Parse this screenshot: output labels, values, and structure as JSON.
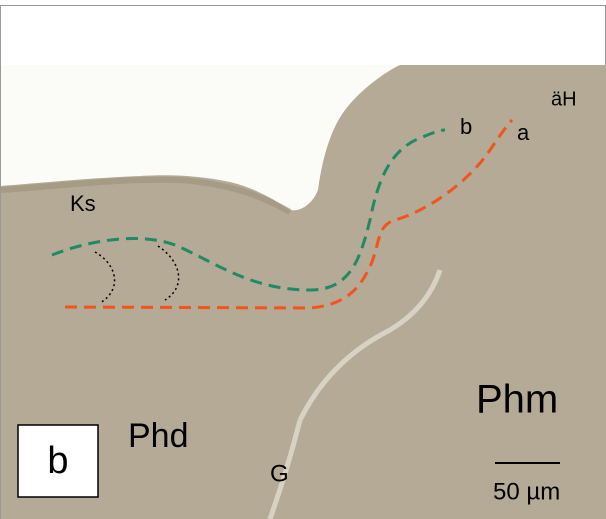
{
  "labels": {
    "panel": "b",
    "ks": "Ks",
    "b": "b",
    "a": "a",
    "aeh": "äH",
    "phm": "Phm",
    "phd": "Phd",
    "g": "G",
    "scale": "50 µm"
  }
}
